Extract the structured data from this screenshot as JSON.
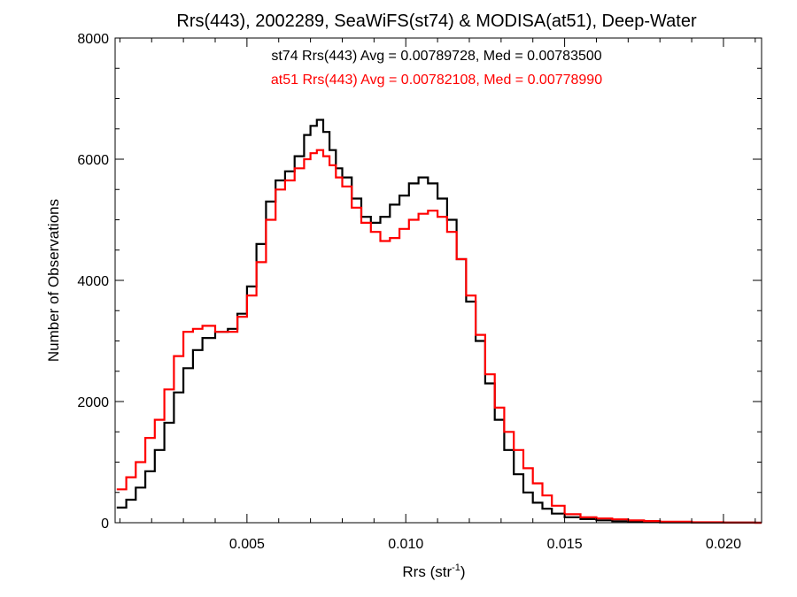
{
  "chart_data": {
    "type": "line",
    "title": "Rrs(443), 2002289, SeaWiFS(st74) & MODISA(at51), Deep-Water",
    "xlabel_main": "Rrs (str",
    "xlabel_sup": "-1",
    "xlabel_close": ")",
    "ylabel": "Number of Observations",
    "xlim": [
      0.00085,
      0.0212
    ],
    "ylim": [
      0,
      8000
    ],
    "x_ticks": [
      0.005,
      0.01,
      0.015,
      0.02
    ],
    "x_tick_labels": [
      "0.005",
      "0.010",
      "0.015",
      "0.020"
    ],
    "y_ticks": [
      0,
      2000,
      4000,
      6000,
      8000
    ],
    "y_tick_labels": [
      "0",
      "2000",
      "4000",
      "6000",
      "8000"
    ],
    "grid": false,
    "legend_position": "top-center",
    "series": [
      {
        "name": "st74 Rrs(443) Avg = 0.00789728, Med = 0.00783500",
        "color": "#000000",
        "x": [
          0.0009,
          0.0012,
          0.0015,
          0.0018,
          0.0021,
          0.0024,
          0.0027,
          0.003,
          0.0033,
          0.0036,
          0.004,
          0.0044,
          0.0047,
          0.005,
          0.0053,
          0.0056,
          0.0059,
          0.0062,
          0.0065,
          0.0068,
          0.007,
          0.0072,
          0.0074,
          0.0076,
          0.0078,
          0.008,
          0.0083,
          0.0086,
          0.0089,
          0.0092,
          0.0095,
          0.0098,
          0.0101,
          0.0104,
          0.0107,
          0.011,
          0.0113,
          0.0116,
          0.0119,
          0.0122,
          0.0125,
          0.0128,
          0.0131,
          0.0134,
          0.0137,
          0.014,
          0.0143,
          0.0146,
          0.015,
          0.0155,
          0.016,
          0.0165,
          0.017,
          0.0175,
          0.018,
          0.019,
          0.02,
          0.021
        ],
        "values": [
          250,
          380,
          580,
          850,
          1200,
          1650,
          2150,
          2550,
          2850,
          3050,
          3150,
          3200,
          3450,
          3900,
          4600,
          5300,
          5650,
          5800,
          6050,
          6400,
          6550,
          6650,
          6450,
          6150,
          5850,
          5700,
          5350,
          5050,
          4950,
          5050,
          5250,
          5400,
          5600,
          5700,
          5600,
          5350,
          5000,
          4350,
          3650,
          3000,
          2300,
          1700,
          1200,
          800,
          500,
          330,
          230,
          150,
          90,
          60,
          40,
          25,
          15,
          10,
          6,
          3,
          1,
          0
        ]
      },
      {
        "name": "at51 Rrs(443) Avg = 0.00782108, Med = 0.00778990",
        "color": "#ff0000",
        "x": [
          0.0009,
          0.0012,
          0.0015,
          0.0018,
          0.0021,
          0.0024,
          0.0027,
          0.003,
          0.0033,
          0.0036,
          0.004,
          0.0044,
          0.0047,
          0.005,
          0.0053,
          0.0056,
          0.0059,
          0.0062,
          0.0065,
          0.0068,
          0.007,
          0.0072,
          0.0074,
          0.0076,
          0.0078,
          0.008,
          0.0083,
          0.0086,
          0.0089,
          0.0092,
          0.0095,
          0.0098,
          0.0101,
          0.0104,
          0.0107,
          0.011,
          0.0113,
          0.0116,
          0.0119,
          0.0122,
          0.0125,
          0.0128,
          0.0131,
          0.0134,
          0.0137,
          0.014,
          0.0143,
          0.0146,
          0.015,
          0.0155,
          0.016,
          0.0165,
          0.017,
          0.0175,
          0.018,
          0.019,
          0.02,
          0.021
        ],
        "values": [
          550,
          750,
          1000,
          1400,
          1700,
          2200,
          2750,
          3150,
          3200,
          3250,
          3150,
          3150,
          3400,
          3750,
          4300,
          5000,
          5500,
          5650,
          5850,
          6000,
          6100,
          6150,
          6050,
          5900,
          5700,
          5550,
          5200,
          4950,
          4800,
          4650,
          4700,
          4850,
          5000,
          5100,
          5150,
          5050,
          4800,
          4350,
          3750,
          3100,
          2450,
          1900,
          1500,
          1200,
          900,
          650,
          450,
          280,
          140,
          90,
          70,
          55,
          40,
          28,
          18,
          8,
          3,
          0
        ]
      }
    ]
  }
}
